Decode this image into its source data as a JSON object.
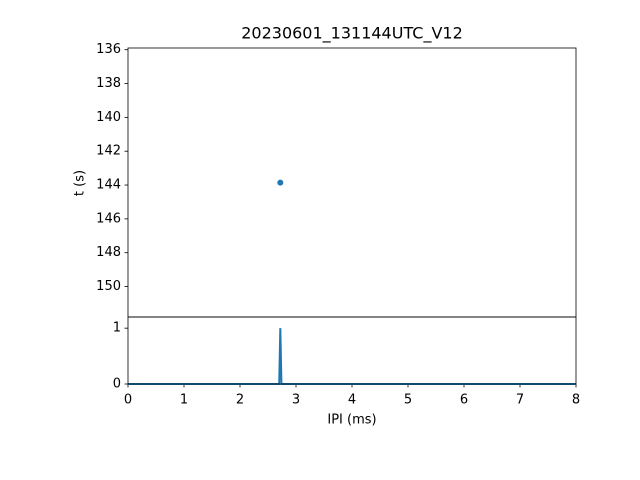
{
  "chart_data": [
    {
      "type": "scatter",
      "title": "20230601_131144UTC_V12",
      "ylabel": "t (s)",
      "series": [
        {
          "color": "#1f77b4",
          "x": [
            2.72
          ],
          "values": [
            143.86
          ]
        }
      ],
      "xlim": [
        0,
        8
      ],
      "ylim": [
        151.8,
        135.9
      ],
      "yticks": [
        136,
        138,
        140,
        142,
        144,
        146,
        148,
        150
      ]
    },
    {
      "type": "line",
      "xlabel": "IPI (ms)",
      "series": [
        {
          "color": "#1f77b4",
          "x": [
            0,
            2.7,
            2.72,
            2.74,
            8
          ],
          "values": [
            0,
            0,
            1,
            0,
            0
          ]
        }
      ],
      "xlim": [
        0,
        8
      ],
      "ylim": [
        0,
        1.2
      ],
      "xticks": [
        0,
        1,
        2,
        3,
        4,
        5,
        6,
        7,
        8
      ],
      "yticks": [
        0,
        1
      ]
    }
  ]
}
